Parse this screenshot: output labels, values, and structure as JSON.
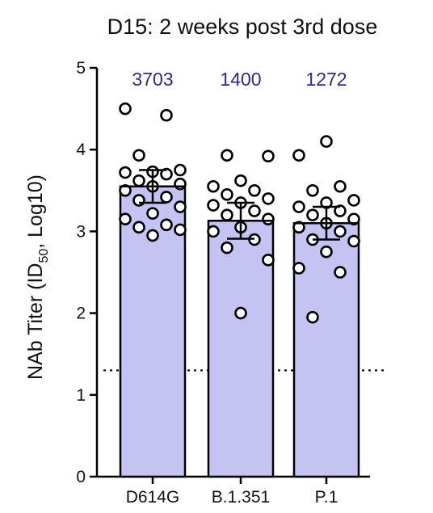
{
  "chart_data": {
    "type": "bar",
    "title": "D15: 2 weeks post 3rd dose",
    "ylabel": "NAb Titer (ID50, Log10)",
    "ylabel_parts": {
      "before": "NAb Titer (ID",
      "sub": "50",
      "after": ", Log10)"
    },
    "xlabel": "",
    "ylim": [
      0,
      5
    ],
    "yticks": [
      "0",
      "1",
      "2",
      "3",
      "4",
      "5"
    ],
    "categories": [
      "D614G",
      "B.1.351",
      "P.1"
    ],
    "values": [
      3.55,
      3.13,
      3.1
    ],
    "error": [
      0.2,
      0.22,
      0.2
    ],
    "gmt_labels": [
      "3703",
      "1400",
      "1272"
    ],
    "threshold": 1.3,
    "points": [
      [
        4.5,
        4.42,
        3.93,
        3.75,
        3.73,
        3.72,
        3.7,
        3.62,
        3.58,
        3.55,
        3.5,
        3.42,
        3.38,
        3.3,
        3.22,
        3.15,
        3.08,
        3.05,
        3.02,
        2.95
      ],
      [
        3.93,
        3.92,
        3.62,
        3.55,
        3.5,
        3.45,
        3.4,
        3.35,
        3.32,
        3.25,
        3.2,
        3.15,
        3.05,
        3.0,
        2.9,
        2.8,
        2.65,
        2.0
      ],
      [
        4.1,
        3.93,
        3.55,
        3.5,
        3.38,
        3.35,
        3.3,
        3.25,
        3.2,
        3.15,
        3.1,
        3.05,
        3.0,
        2.9,
        2.88,
        2.75,
        2.55,
        2.5,
        1.95
      ]
    ],
    "grid": false,
    "colors": {
      "bar_fill": "#c5c3f2",
      "bar_stroke": "#000000",
      "gmt_text": "#2e2a8c"
    }
  }
}
